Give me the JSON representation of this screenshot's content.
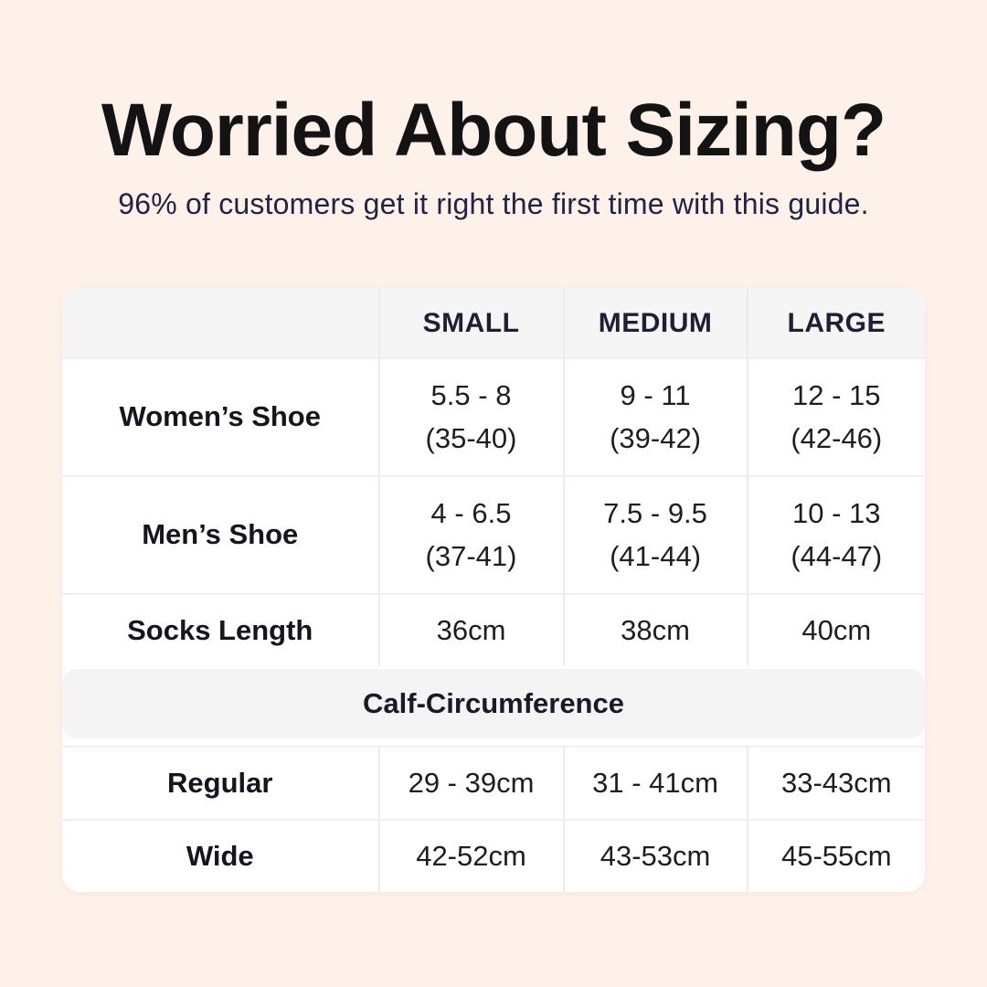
{
  "header": {
    "title": "Worried About Sizing?",
    "subtitle": "96% of customers get it right the first time with this guide."
  },
  "table": {
    "columns": [
      "",
      "SMALL",
      "MEDIUM",
      "LARGE"
    ],
    "rows": [
      {
        "label": "Women’s Shoe",
        "values": [
          "5.5 - 8\n(35-40)",
          "9 - 11\n(39-42)",
          "12 - 15\n(42-46)"
        ]
      },
      {
        "label": "Men’s Shoe",
        "values": [
          "4 - 6.5\n(37-41)",
          "7.5 - 9.5\n(41-44)",
          "10 - 13\n(44-47)"
        ]
      },
      {
        "label": "Socks Length",
        "values": [
          "36cm",
          "38cm",
          "40cm"
        ]
      }
    ],
    "section_header": "Calf-Circumference",
    "calf_rows": [
      {
        "label": "Regular",
        "values": [
          "29 - 39cm",
          "31 - 41cm",
          "33-43cm"
        ]
      },
      {
        "label": "Wide",
        "values": [
          "42-52cm",
          "43-53cm",
          "45-55cm"
        ]
      }
    ]
  },
  "colors": {
    "background": "#fdf1ea",
    "card": "#ffffff",
    "header_row_bg": "#f5f5f6",
    "section_band_bg": "#f4f4f5",
    "divider": "#ececef",
    "title_text": "#131313",
    "subtitle_text": "#232343",
    "body_text": "#1e1e1e"
  }
}
